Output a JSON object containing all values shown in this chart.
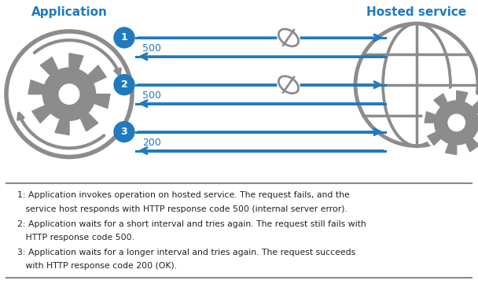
{
  "title_app": "Application",
  "title_hosted": "Hosted service",
  "title_color": "#1f7abf",
  "bg_color": "#ffffff",
  "gear_color": "#8c8c8c",
  "arrow_color": "#1f7abf",
  "legend_text_1a": "1: Application invokes operation on hosted service. The request fails, and the",
  "legend_text_1b": "   service host responds with HTTP response code 500 (internal server error).",
  "legend_text_2a": "2: Application waits for a short interval and tries again. The request still fails with",
  "legend_text_2b": "   HTTP response code 500.",
  "legend_text_3a": "3: Application waits for a longer interval and tries again. The request succeeds",
  "legend_text_3b": "   with HTTP response code 200 (OK).",
  "rows": [
    {
      "num": "1",
      "blocked": true,
      "return_label": "500"
    },
    {
      "num": "2",
      "blocked": true,
      "return_label": "500"
    },
    {
      "num": "3",
      "blocked": false,
      "return_label": "200"
    }
  ],
  "fig_width": 6.08,
  "fig_height": 3.61,
  "dpi": 100
}
